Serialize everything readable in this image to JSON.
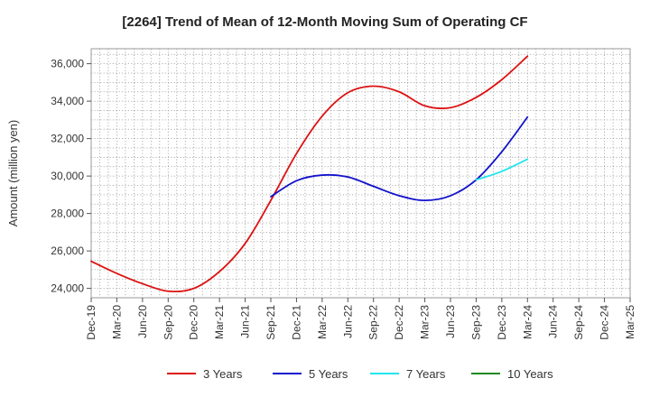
{
  "chart_data": {
    "type": "line",
    "title": "[2264]  Trend of Mean of 12-Month Moving Sum of Operating CF",
    "xlabel": "",
    "ylabel": "Amount (million yen)",
    "ylim": [
      23500,
      36800
    ],
    "yticks": [
      24000,
      26000,
      28000,
      30000,
      32000,
      34000,
      36000
    ],
    "ytick_labels": [
      "24,000",
      "26,000",
      "28,000",
      "30,000",
      "32,000",
      "34,000",
      "36,000"
    ],
    "categories": [
      "Dec-19",
      "Mar-20",
      "Jun-20",
      "Sep-20",
      "Dec-20",
      "Mar-21",
      "Jun-21",
      "Sep-21",
      "Dec-21",
      "Mar-22",
      "Jun-22",
      "Sep-22",
      "Dec-22",
      "Mar-23",
      "Jun-23",
      "Sep-23",
      "Dec-23",
      "Mar-24",
      "Jun-24",
      "Sep-24",
      "Dec-24",
      "Mar-25"
    ],
    "grid": true,
    "legend_position": "bottom",
    "series": [
      {
        "name": "3 Years",
        "color": "#dd1111",
        "values": [
          25450,
          24800,
          24250,
          23850,
          24000,
          24900,
          26400,
          28700,
          31200,
          33200,
          34450,
          34800,
          34500,
          33750,
          33650,
          34200,
          35150,
          36400,
          null,
          null,
          null,
          null
        ]
      },
      {
        "name": "5 Years",
        "color": "#1111cc",
        "values": [
          null,
          null,
          null,
          null,
          null,
          null,
          null,
          28900,
          29750,
          30050,
          29950,
          29450,
          28950,
          28700,
          28950,
          29800,
          31300,
          33150,
          null,
          null,
          null,
          null
        ]
      },
      {
        "name": "7 Years",
        "color": "#22e5ee",
        "values": [
          null,
          null,
          null,
          null,
          null,
          null,
          null,
          null,
          null,
          null,
          null,
          null,
          null,
          null,
          null,
          29800,
          30250,
          30900,
          null,
          null,
          null,
          null
        ]
      },
      {
        "name": "10 Years",
        "color": "#228822",
        "values": [
          null,
          null,
          null,
          null,
          null,
          null,
          null,
          null,
          null,
          null,
          null,
          null,
          null,
          null,
          null,
          null,
          null,
          null,
          null,
          null,
          null,
          null
        ]
      }
    ]
  }
}
